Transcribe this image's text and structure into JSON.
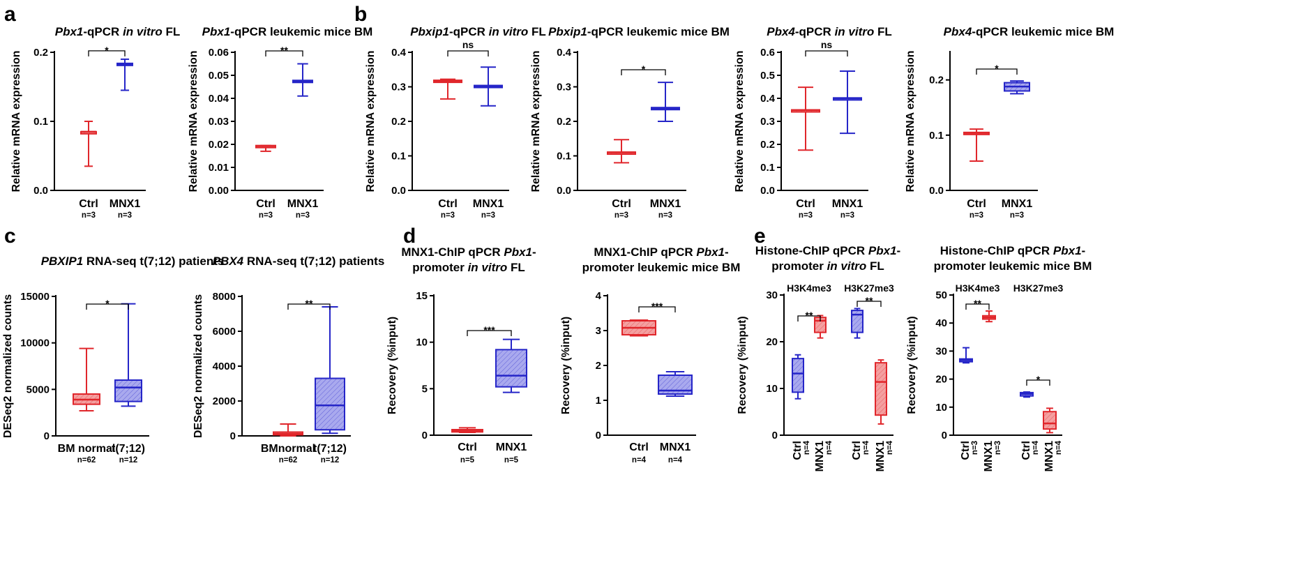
{
  "colors": {
    "ctrl": "#e0262b",
    "mnx1": "#2525c8",
    "ctrl_fill": "#f4a0a0",
    "mnx1_fill": "#a9a9ee"
  },
  "ylabels": {
    "rel": "Relative mRNA expression",
    "deseq": "DESeq2 normalized counts",
    "recovery": "Recovery (%input)"
  },
  "chart_data": [
    {
      "id": "a1",
      "panel_label": "a",
      "type": "box",
      "title": [
        "Pbx1-qPCR ",
        "in vitro",
        " FL"
      ],
      "ylim": [
        0,
        0.2
      ],
      "yticks": [
        "0.0",
        "0.1",
        "0.2"
      ],
      "categories": [
        "Ctrl",
        "MNX1"
      ],
      "n": [
        "n=3",
        "n=3"
      ],
      "series": [
        {
          "name": "Ctrl",
          "min": 0.035,
          "q1": 0.085,
          "median": 0.085,
          "q3": 0.085,
          "max": 0.1
        },
        {
          "name": "MNX1",
          "min": 0.145,
          "q1": 0.182,
          "median": 0.183,
          "q3": 0.184,
          "max": 0.19
        }
      ],
      "sig": [
        {
          "from": 0,
          "to": 1,
          "label": "*"
        }
      ]
    },
    {
      "id": "a2",
      "type": "box",
      "title": [
        "Pbx1-qPCR leukemic mice BM"
      ],
      "ylim": [
        0,
        0.06
      ],
      "yticks": [
        "0.00",
        "0.01",
        "0.02",
        "0.03",
        "0.04",
        "0.05",
        "0.06"
      ],
      "categories": [
        "Ctrl",
        "MNX1"
      ],
      "n": [
        "n=3",
        "n=3"
      ],
      "series": [
        {
          "name": "Ctrl",
          "min": 0.017,
          "q1": 0.0193,
          "median": 0.0193,
          "q3": 0.0195,
          "max": 0.0195
        },
        {
          "name": "MNX1",
          "min": 0.041,
          "q1": 0.0475,
          "median": 0.0475,
          "q3": 0.0478,
          "max": 0.055
        }
      ],
      "sig": [
        {
          "from": 0,
          "to": 1,
          "label": "**"
        }
      ]
    },
    {
      "id": "b1",
      "panel_label": "b",
      "type": "box",
      "title": [
        "Pbxip1-qPCR ",
        "in vitro",
        " FL"
      ],
      "ylim": [
        0,
        0.4
      ],
      "yticks": [
        "0.0",
        "0.1",
        "0.2",
        "0.3",
        "0.4"
      ],
      "categories": [
        "Ctrl",
        "MNX1"
      ],
      "n": [
        "n=3",
        "n=3"
      ],
      "series": [
        {
          "name": "Ctrl",
          "min": 0.265,
          "q1": 0.316,
          "median": 0.317,
          "q3": 0.319,
          "max": 0.322
        },
        {
          "name": "MNX1",
          "min": 0.245,
          "q1": 0.3,
          "median": 0.302,
          "q3": 0.304,
          "max": 0.357
        }
      ],
      "sig": [
        {
          "from": 0,
          "to": 1,
          "label": "ns"
        }
      ]
    },
    {
      "id": "b2",
      "type": "box",
      "title": [
        "Pbxip1-qPCR leukemic mice BM"
      ],
      "ylim": [
        0,
        0.4
      ],
      "yticks": [
        "0.0",
        "0.1",
        "0.2",
        "0.3",
        "0.4"
      ],
      "categories": [
        "Ctrl",
        "MNX1"
      ],
      "n": [
        "n=3",
        "n=3"
      ],
      "series": [
        {
          "name": "Ctrl",
          "min": 0.08,
          "q1": 0.109,
          "median": 0.11,
          "q3": 0.111,
          "max": 0.147
        },
        {
          "name": "MNX1",
          "min": 0.2,
          "q1": 0.237,
          "median": 0.238,
          "q3": 0.24,
          "max": 0.313
        }
      ],
      "sig": [
        {
          "from": 0,
          "to": 1,
          "label": "*"
        }
      ]
    },
    {
      "id": "b3",
      "type": "box",
      "title": [
        "Pbx4-qPCR ",
        "in vitro",
        " FL"
      ],
      "ylim": [
        0,
        0.6
      ],
      "yticks": [
        "0.0",
        "0.1",
        "0.2",
        "0.3",
        "0.4",
        "0.5",
        "0.6"
      ],
      "categories": [
        "Ctrl",
        "MNX1"
      ],
      "n": [
        "n=3",
        "n=3"
      ],
      "series": [
        {
          "name": "Ctrl",
          "min": 0.175,
          "q1": 0.348,
          "median": 0.349,
          "q3": 0.35,
          "max": 0.448
        },
        {
          "name": "MNX1",
          "min": 0.248,
          "q1": 0.398,
          "median": 0.4,
          "q3": 0.402,
          "max": 0.518
        }
      ],
      "sig": [
        {
          "from": 0,
          "to": 1,
          "label": "ns"
        }
      ]
    },
    {
      "id": "b4",
      "type": "box",
      "title": [
        "Pbx4-qPCR leukemic mice BM"
      ],
      "ylim": [
        0,
        0.25
      ],
      "yticks": [
        "0.0",
        "0.1",
        "0.2"
      ],
      "categories": [
        "Ctrl",
        "MNX1"
      ],
      "n": [
        "n=3",
        "n=3"
      ],
      "series": [
        {
          "name": "Ctrl",
          "min": 0.053,
          "q1": 0.103,
          "median": 0.104,
          "q3": 0.105,
          "max": 0.111
        },
        {
          "name": "MNX1",
          "min": 0.175,
          "q1": 0.18,
          "median": 0.188,
          "q3": 0.195,
          "max": 0.198
        }
      ],
      "sig": [
        {
          "from": 0,
          "to": 1,
          "label": "*"
        }
      ]
    },
    {
      "id": "c1",
      "panel_label": "c",
      "type": "box",
      "title": [
        "PBXIP1 RNA-seq t(7;12) patients"
      ],
      "ylim": [
        0,
        15000
      ],
      "yticks": [
        "0",
        "5000",
        "10000",
        "15000"
      ],
      "categories": [
        "BM normal",
        "t(7;12)"
      ],
      "n": [
        "n=62",
        "n=12"
      ],
      "series": [
        {
          "name": "BM normal",
          "min": 2700,
          "q1": 3400,
          "median": 3900,
          "q3": 4500,
          "max": 9400
        },
        {
          "name": "t(7;12)",
          "min": 3200,
          "q1": 3700,
          "median": 5200,
          "q3": 6000,
          "max": 14200
        }
      ],
      "sig": [
        {
          "from": 0,
          "to": 1,
          "label": "*"
        }
      ]
    },
    {
      "id": "c2",
      "type": "box",
      "title": [
        "PBX4 RNA-seq t(7;12) patients"
      ],
      "ylim": [
        0,
        8000
      ],
      "yticks": [
        "0",
        "2000",
        "4000",
        "6000",
        "8000"
      ],
      "categories": [
        "BMnormal",
        "t(7;12)"
      ],
      "n": [
        "n=62",
        "n=12"
      ],
      "series": [
        {
          "name": "BMnormal",
          "min": 0,
          "q1": 60,
          "median": 120,
          "q3": 220,
          "max": 680
        },
        {
          "name": "t(7;12)",
          "min": 150,
          "q1": 350,
          "median": 1750,
          "q3": 3300,
          "max": 7400
        }
      ],
      "sig": [
        {
          "from": 0,
          "to": 1,
          "label": "**"
        }
      ]
    },
    {
      "id": "d1",
      "panel_label": "d",
      "type": "box",
      "title": [
        "MNX1-ChIP qPCR Pbx1-",
        "promoter in vitro FL"
      ],
      "ylim": [
        0,
        15
      ],
      "yticks": [
        "0",
        "5",
        "10",
        "15"
      ],
      "categories": [
        "Ctrl",
        "MNX1"
      ],
      "n": [
        "n=5",
        "n=5"
      ],
      "series": [
        {
          "name": "Ctrl",
          "min": 0.3,
          "q1": 0.35,
          "median": 0.45,
          "q3": 0.6,
          "max": 0.8
        },
        {
          "name": "MNX1",
          "min": 4.6,
          "q1": 5.2,
          "median": 6.4,
          "q3": 9.2,
          "max": 10.3
        }
      ],
      "sig": [
        {
          "from": 0,
          "to": 1,
          "label": "***"
        }
      ]
    },
    {
      "id": "d2",
      "type": "box",
      "title": [
        "MNX1-ChIP qPCR Pbx1-",
        "promoter leukemic mice BM"
      ],
      "ylim": [
        0,
        4
      ],
      "yticks": [
        "0",
        "1",
        "2",
        "3",
        "4"
      ],
      "categories": [
        "Ctrl",
        "MNX1"
      ],
      "n": [
        "n=4",
        "n=4"
      ],
      "series": [
        {
          "name": "Ctrl",
          "min": 2.85,
          "q1": 2.88,
          "median": 3.08,
          "q3": 3.28,
          "max": 3.3
        },
        {
          "name": "MNX1",
          "min": 1.12,
          "q1": 1.18,
          "median": 1.28,
          "q3": 1.72,
          "max": 1.82
        }
      ],
      "sig": [
        {
          "from": 0,
          "to": 1,
          "label": "***"
        }
      ]
    },
    {
      "id": "e1",
      "panel_label": "e",
      "type": "box",
      "title": [
        "Histone-ChIP qPCR Pbx1-",
        "promoter in vitro FL"
      ],
      "ylim": [
        0,
        30
      ],
      "yticks": [
        "0",
        "10",
        "20",
        "30"
      ],
      "categories": [
        "Ctrl",
        "MNX1",
        "Ctrl",
        "MNX1"
      ],
      "n": [
        "n=4",
        "n=4",
        "n=4",
        "n=4"
      ],
      "marks": [
        "H3K4me3",
        "H3K27me3"
      ],
      "series": [
        {
          "name": "H3K4me3 Ctrl",
          "min": 7.8,
          "q1": 9.2,
          "median": 13.2,
          "q3": 16.4,
          "max": 17.2
        },
        {
          "name": "H3K4me3 MNX1",
          "min": 20.8,
          "q1": 22.0,
          "median": 24.5,
          "q3": 25.2,
          "max": 25.6
        },
        {
          "name": "H3K27me3 Ctrl",
          "min": 20.8,
          "q1": 22.0,
          "median": 25.8,
          "q3": 26.7,
          "max": 27.1
        },
        {
          "name": "H3K27me3 MNX1",
          "min": 2.4,
          "q1": 4.3,
          "median": 11.4,
          "q3": 15.5,
          "max": 16.1
        }
      ],
      "sig": [
        {
          "from": 0,
          "to": 1,
          "label": "**"
        },
        {
          "from": 2,
          "to": 3,
          "label": "**"
        }
      ]
    },
    {
      "id": "e2",
      "type": "box",
      "title": [
        "Histone-ChIP qPCR Pbx1-",
        "promoter leukemic mice BM"
      ],
      "ylim": [
        0,
        50
      ],
      "yticks": [
        "0",
        "10",
        "20",
        "30",
        "40",
        "50"
      ],
      "categories": [
        "Ctrl",
        "MNX1",
        "Ctrl",
        "MNX1"
      ],
      "n": [
        "n=3",
        "n=3",
        "n=4",
        "n=4"
      ],
      "marks": [
        "H3K4me3",
        "H3K27me3"
      ],
      "series": [
        {
          "name": "H3K4me3 Ctrl",
          "min": 25.8,
          "q1": 26.2,
          "median": 26.8,
          "q3": 27.2,
          "max": 31.2
        },
        {
          "name": "H3K4me3 MNX1",
          "min": 40.5,
          "q1": 41.4,
          "median": 42.0,
          "q3": 42.6,
          "max": 44.3
        },
        {
          "name": "H3K27me3 Ctrl",
          "min": 13.6,
          "q1": 14.0,
          "median": 14.7,
          "q3": 15.2,
          "max": 15.4
        },
        {
          "name": "H3K27me3 MNX1",
          "min": 0.9,
          "q1": 2.2,
          "median": 4.2,
          "q3": 8.4,
          "max": 9.6
        }
      ],
      "sig": [
        {
          "from": 0,
          "to": 1,
          "label": "**"
        },
        {
          "from": 2,
          "to": 3,
          "label": "*"
        }
      ]
    }
  ]
}
